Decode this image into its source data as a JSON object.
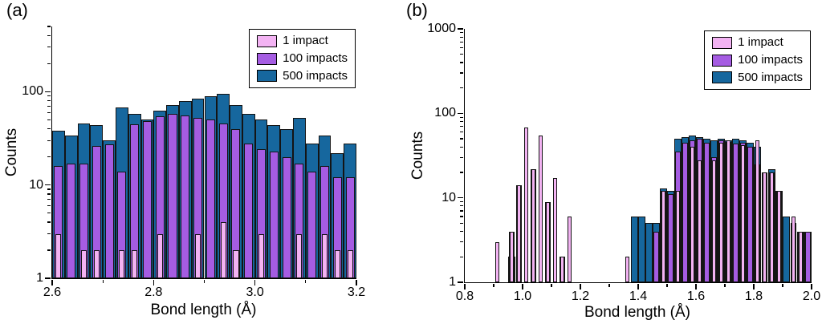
{
  "figure": {
    "background": "#ffffff",
    "axis_color": "#000000"
  },
  "chart_data": [
    {
      "type": "bar",
      "subtype": "overlaid-histogram-log-y",
      "panel_label": "(a)",
      "xlabel": "Bond length (Å)",
      "ylabel": "Counts",
      "xlim": [
        2.6,
        3.2
      ],
      "ylim": [
        1,
        500
      ],
      "xticks": [
        2.6,
        2.8,
        3.0,
        3.2
      ],
      "xticks_minor": [
        2.7,
        2.9,
        3.1
      ],
      "yticks": [
        1,
        10,
        100
      ],
      "xtick_decimals": 1,
      "bin_start": 2.6,
      "bin_width": 0.025,
      "grid": false,
      "legend_position": "top-right",
      "series": [
        {
          "name": "1 impact",
          "color": "#f3b3f3",
          "values": [
            3,
            0,
            2,
            2,
            0,
            2,
            2,
            0,
            3,
            0,
            0,
            3,
            0,
            4,
            2,
            0,
            3,
            0,
            0,
            3,
            0,
            3,
            2,
            2
          ]
        },
        {
          "name": "100 impacts",
          "color": "#a55ce2",
          "values": [
            16,
            17,
            17,
            26,
            27,
            14,
            45,
            48,
            55,
            58,
            56,
            52,
            50,
            46,
            40,
            28,
            24,
            23,
            20,
            17,
            14,
            16,
            12,
            12
          ]
        },
        {
          "name": "500 impacts",
          "color": "#16679e",
          "values": [
            38,
            34,
            46,
            44,
            30,
            68,
            58,
            50,
            62,
            72,
            80,
            85,
            90,
            95,
            72,
            58,
            50,
            44,
            40,
            52,
            28,
            34,
            22,
            28
          ]
        }
      ]
    },
    {
      "type": "bar",
      "subtype": "overlaid-histogram-log-y",
      "panel_label": "(b)",
      "xlabel": "Bond length (Å)",
      "ylabel": "Counts",
      "xlim": [
        0.8,
        2.0
      ],
      "ylim": [
        1,
        1000
      ],
      "xticks": [
        0.8,
        1.0,
        1.2,
        1.4,
        1.6,
        1.8,
        2.0
      ],
      "xticks_minor": [
        0.9,
        1.1,
        1.3,
        1.5,
        1.7,
        1.9
      ],
      "yticks": [
        1,
        10,
        100,
        1000
      ],
      "xtick_decimals": 1,
      "bin_start": 0.8,
      "bin_width": 0.025,
      "grid": false,
      "legend_position": "top-right",
      "series": [
        {
          "name": "1 impact",
          "color": "#f3b3f3",
          "values": [
            0,
            0,
            0,
            0,
            3,
            0,
            4,
            14,
            68,
            22,
            55,
            9,
            17,
            2,
            6,
            0,
            0,
            0,
            0,
            0,
            0,
            0,
            2,
            0,
            0,
            0,
            0,
            12,
            0,
            12,
            0,
            40,
            28,
            0,
            28,
            45,
            48,
            0,
            42,
            0,
            48,
            20,
            20,
            12,
            0,
            6,
            4,
            0
          ]
        },
        {
          "name": "100 impacts",
          "color": "#a55ce2",
          "values": [
            0,
            0,
            0,
            0,
            0,
            0,
            4,
            14,
            0,
            22,
            0,
            9,
            0,
            2,
            0,
            0,
            0,
            0,
            0,
            0,
            0,
            0,
            0,
            0,
            0,
            0,
            4,
            12,
            11,
            35,
            45,
            48,
            50,
            45,
            30,
            48,
            46,
            44,
            45,
            40,
            25,
            20,
            20,
            12,
            0,
            5,
            4,
            4
          ]
        },
        {
          "name": "500 impacts",
          "color": "#16679e",
          "values": [
            0,
            0,
            0,
            0,
            0,
            0,
            2,
            0,
            0,
            0,
            0,
            0,
            0,
            0,
            0,
            0,
            0,
            0,
            0,
            0,
            0,
            0,
            0,
            6,
            6,
            5,
            5,
            13,
            12,
            50,
            52,
            55,
            52,
            50,
            48,
            50,
            48,
            50,
            48,
            45,
            40,
            0,
            22,
            12,
            6,
            0,
            4,
            4
          ]
        }
      ]
    }
  ]
}
